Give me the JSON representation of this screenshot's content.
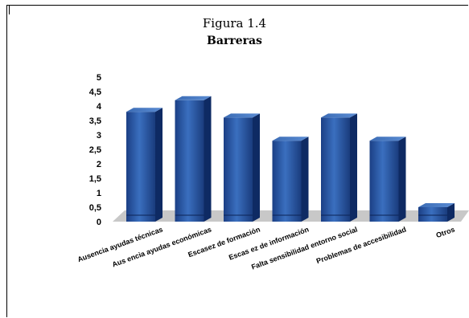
{
  "figure": {
    "label": "Figura 1.4",
    "subtitle": "Barreras"
  },
  "chart_data": {
    "type": "bar",
    "title": "Figura 1.4",
    "subtitle": "Barreras",
    "categories": [
      "Ausencia ayudas técnicas",
      "Aus encia ayudas económicas",
      "Escasez de formación",
      "Escas ez de información",
      "Falta sensibilidad entorno social",
      "Problemas de accesibilidad",
      "Otros"
    ],
    "values": [
      3.8,
      4.2,
      3.6,
      2.8,
      3.6,
      2.8,
      0.5
    ],
    "ylim": [
      0,
      5
    ],
    "yticks": [
      "0",
      "0,5",
      "1",
      "1,5",
      "2",
      "2,5",
      "3",
      "3,5",
      "4",
      "4,5",
      "5"
    ],
    "xlabel": "",
    "ylabel": "",
    "grid": false,
    "legend": "none",
    "style": "3d",
    "colors": {
      "bar_front": "#2c5ea6",
      "bar_dark": "#0e2a63",
      "bar_top": "#4a7cc4",
      "floor": "#c8c8c8"
    }
  }
}
